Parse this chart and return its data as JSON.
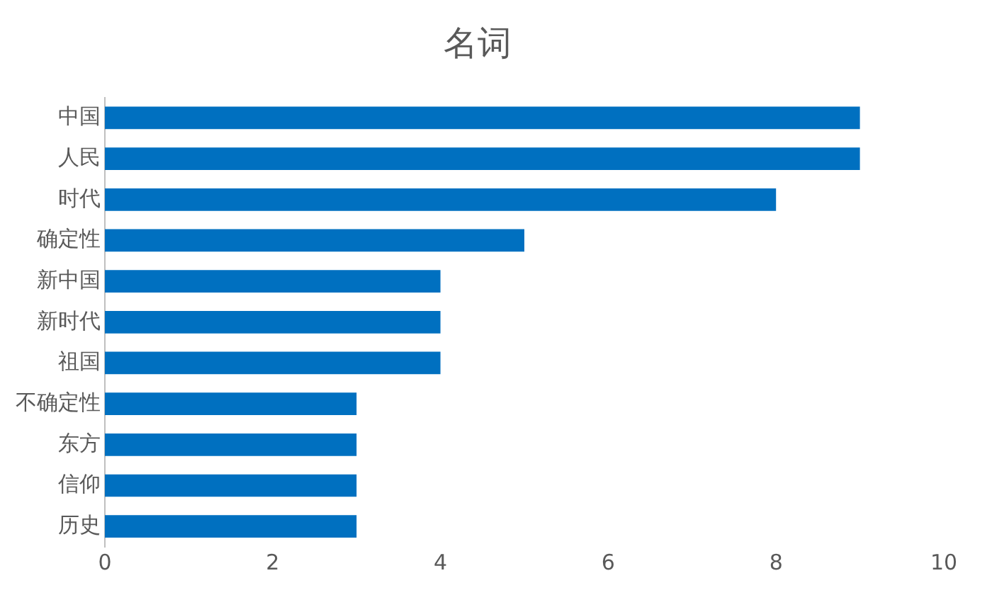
{
  "chart_data": {
    "type": "bar",
    "title": "名词",
    "orientation": "horizontal",
    "categories": [
      "中国",
      "人民",
      "时代",
      "确定性",
      "新中国",
      "新时代",
      "祖国",
      "不确定性",
      "东方",
      "信仰",
      "历史"
    ],
    "values": [
      9,
      9,
      8,
      5,
      4,
      4,
      4,
      3,
      3,
      3,
      3
    ],
    "color": "#0070c0",
    "xlim": [
      0,
      10
    ],
    "xticks": [
      0,
      2,
      4,
      6,
      8,
      10
    ],
    "grid": false,
    "legend": false
  }
}
